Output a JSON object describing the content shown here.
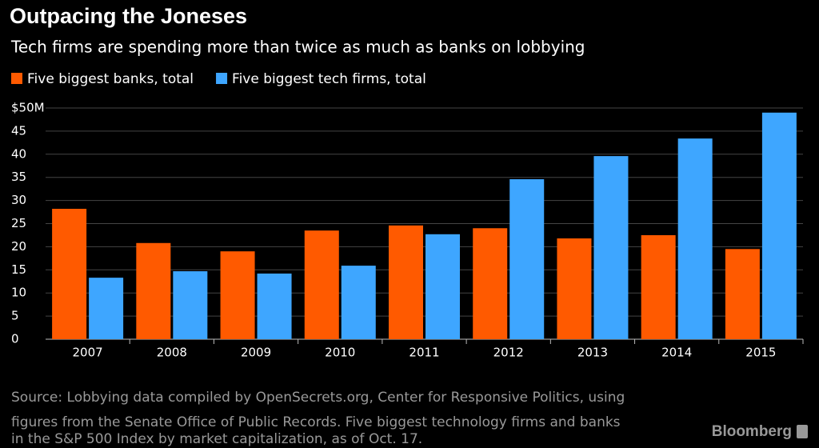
{
  "chart_data": {
    "type": "bar",
    "title": "Outpacing the Joneses",
    "subtitle": "Tech firms are spending more than twice as much as banks on lobbying",
    "categories": [
      "2007",
      "2008",
      "2009",
      "2010",
      "2011",
      "2012",
      "2013",
      "2014",
      "2015"
    ],
    "series": [
      {
        "name": "Five biggest banks, total",
        "color": "#ff5a00",
        "values": [
          28.2,
          20.8,
          19.0,
          23.5,
          24.6,
          24.0,
          21.8,
          22.5,
          19.5
        ]
      },
      {
        "name": "Five biggest tech firms, total",
        "color": "#3ea6ff",
        "values": [
          13.3,
          14.7,
          14.2,
          15.9,
          22.7,
          34.6,
          39.6,
          43.4,
          49.0
        ]
      }
    ],
    "ylim": [
      0,
      50
    ],
    "yticks": [
      0,
      5,
      10,
      15,
      20,
      25,
      30,
      35,
      40,
      45,
      {
        "value": 50,
        "label": "$50M"
      }
    ],
    "grid": true,
    "source": [
      "Source: Lobbying data compiled by OpenSecrets.org, Center for Responsive Politics, using",
      "figures from the Senate Office of Public Records. Five biggest technology firms and banks",
      "in the S&P 500 Index by market capitalization, as of Oct. 17."
    ],
    "brand": "Bloomberg"
  }
}
